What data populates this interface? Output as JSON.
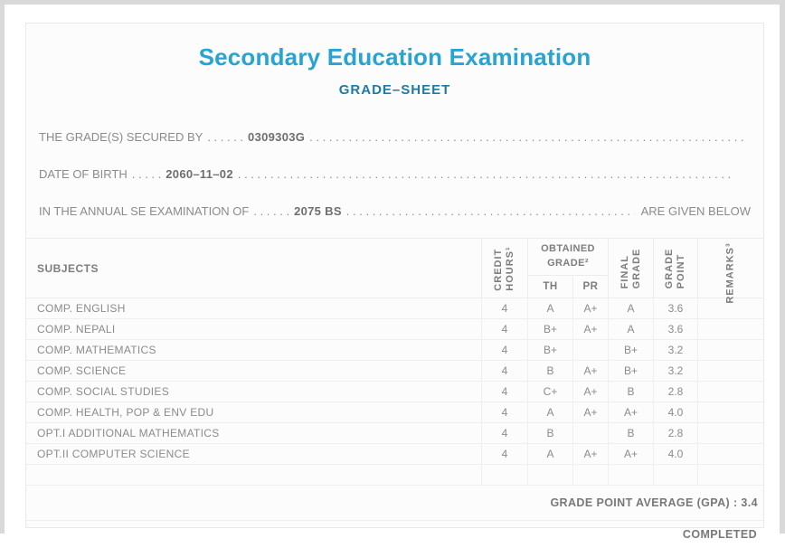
{
  "page": {
    "title": "Secondary Education Examination",
    "subtitle": "GRADE–SHEET"
  },
  "info": {
    "dots_fill": ". . . . . . . . . . . . . . . . . . . . . . . . . . . . . . . . . . . . . . . . . . . . . . . . . . . . . . . . . . . . . . . . . . . . . . . . . . . .",
    "lines": [
      {
        "label": "THE GRADE(S) SECURED BY",
        "dots": ". . . . . .",
        "value": "0309303G",
        "suffix": ""
      },
      {
        "label": "DATE OF BIRTH",
        "dots": ". . . . .",
        "value": "2060–11–02",
        "suffix": ""
      },
      {
        "label": "IN THE ANNUAL SE EXAMINATION OF",
        "dots": ". . . . . .",
        "value": "2075 BS",
        "suffix": "ARE GIVEN BELOW"
      }
    ]
  },
  "table": {
    "headers": {
      "subjects": "SUBJECTS",
      "credit_hours_l1": "CREDIT",
      "credit_hours_l2": "HOURS¹",
      "obtained_grade": "OBTAINED GRADE²",
      "th": "TH",
      "pr": "PR",
      "final_grade_l1": "FINAL",
      "final_grade_l2": "GRADE",
      "grade_point_l1": "GRADE",
      "grade_point_l2": "POINT",
      "remarks": "REMARKS³"
    },
    "rows": [
      {
        "subject": "COMP. ENGLISH",
        "credit_hours": "4",
        "th": "A",
        "pr": "A+",
        "final_grade": "A",
        "grade_point": "3.6",
        "remarks": ""
      },
      {
        "subject": "COMP. NEPALI",
        "credit_hours": "4",
        "th": "B+",
        "pr": "A+",
        "final_grade": "A",
        "grade_point": "3.6",
        "remarks": ""
      },
      {
        "subject": "COMP. MATHEMATICS",
        "credit_hours": "4",
        "th": "B+",
        "pr": "",
        "final_grade": "B+",
        "grade_point": "3.2",
        "remarks": ""
      },
      {
        "subject": "COMP. SCIENCE",
        "credit_hours": "4",
        "th": "B",
        "pr": "A+",
        "final_grade": "B+",
        "grade_point": "3.2",
        "remarks": ""
      },
      {
        "subject": "COMP. SOCIAL STUDIES",
        "credit_hours": "4",
        "th": "C+",
        "pr": "A+",
        "final_grade": "B",
        "grade_point": "2.8",
        "remarks": ""
      },
      {
        "subject": "COMP. HEALTH, POP & ENV EDU",
        "credit_hours": "4",
        "th": "A",
        "pr": "A+",
        "final_grade": "A+",
        "grade_point": "4.0",
        "remarks": ""
      },
      {
        "subject": "OPT.I ADDITIONAL MATHEMATICS",
        "credit_hours": "4",
        "th": "B",
        "pr": "",
        "final_grade": "B",
        "grade_point": "2.8",
        "remarks": ""
      },
      {
        "subject": "OPT.II COMPUTER SCIENCE",
        "credit_hours": "4",
        "th": "A",
        "pr": "A+",
        "final_grade": "A+",
        "grade_point": "4.0",
        "remarks": ""
      }
    ],
    "footer": {
      "gpa_text": "GRADE POINT AVERAGE (GPA) : 3.4",
      "completed_text": "COMPLETED"
    }
  },
  "colors": {
    "title_blue": "#29a4d2",
    "subtitle_blue": "#1f7aa6",
    "text_grey": "#8b8b8b",
    "frame_grey": "#d9d9d9"
  }
}
